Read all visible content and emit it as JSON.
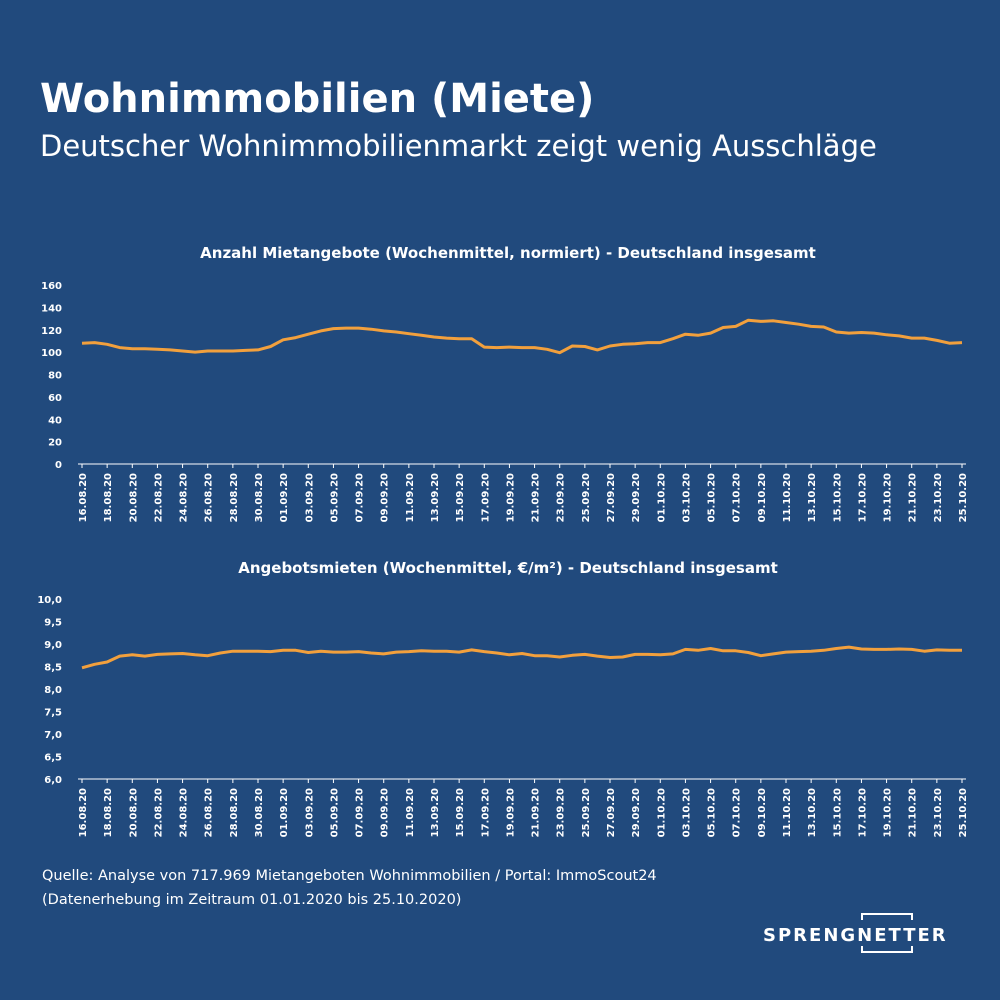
{
  "title": "Wohnimmobilien (Miete)",
  "subtitle": "Deutscher Wohnimmobilienmarkt zeigt wenig Ausschläge",
  "chart_data": [
    {
      "type": "line",
      "title": "Anzahl Mietangebote (Wochenmittel, normiert) - Deutschland insgesamt",
      "categories": [
        "16.08.20",
        null,
        "18.08.20",
        null,
        "20.08.20",
        null,
        "22.08.20",
        null,
        "24.08.20",
        null,
        "26.08.20",
        null,
        "28.08.20",
        null,
        "30.08.20",
        null,
        "01.09.20",
        null,
        "03.09.20",
        null,
        "05.09.20",
        null,
        "07.09.20",
        null,
        "09.09.20",
        null,
        "11.09.20",
        null,
        "13.09.20",
        null,
        "15.09.20",
        null,
        "17.09.20",
        null,
        "19.09.20",
        null,
        "21.09.20",
        null,
        "23.09.20",
        null,
        "25.09.20",
        null,
        "27.09.20",
        null,
        "29.09.20",
        null,
        "01.10.20",
        null,
        "03.10.20",
        null,
        "05.10.20",
        null,
        "07.10.20",
        null,
        "09.10.20",
        null,
        "11.10.20",
        null,
        "13.10.20",
        null,
        "15.10.20",
        null,
        "17.10.20",
        null,
        "19.10.20",
        null,
        "21.10.20",
        null,
        "23.10.20",
        null,
        "25.10.20"
      ],
      "series": [
        {
          "name": "Anzahl Mietangebote",
          "color": "#f2a03d",
          "values": [
            108,
            108.5,
            107,
            104,
            103,
            103,
            102.5,
            102,
            101,
            100,
            101,
            101,
            101,
            101.5,
            102,
            105,
            111,
            113,
            116,
            119,
            121,
            121.5,
            121.5,
            120.5,
            119,
            118,
            116.5,
            115,
            113.5,
            112.5,
            112,
            112,
            104.5,
            104,
            104.5,
            104,
            104,
            102.5,
            99.5,
            105.5,
            105,
            102,
            105.5,
            107,
            107.5,
            108.5,
            108.5,
            112,
            116,
            115,
            117,
            122,
            123,
            128.5,
            127.5,
            128,
            126.5,
            125,
            123,
            122.5,
            118,
            117,
            117.5,
            117,
            115.5,
            114.5,
            112.5,
            112.5,
            110.5,
            108,
            108.5
          ]
        }
      ],
      "ylim": [
        0,
        160
      ],
      "yticks": [
        0,
        20,
        40,
        60,
        80,
        100,
        120,
        140,
        160
      ]
    },
    {
      "type": "line",
      "title": "Angebotsmieten (Wochenmittel, €/m²) - Deutschland insgesamt",
      "categories": [
        "16.08.20",
        null,
        "18.08.20",
        null,
        "20.08.20",
        null,
        "22.08.20",
        null,
        "24.08.20",
        null,
        "26.08.20",
        null,
        "28.08.20",
        null,
        "30.08.20",
        null,
        "01.09.20",
        null,
        "03.09.20",
        null,
        "05.09.20",
        null,
        "07.09.20",
        null,
        "09.09.20",
        null,
        "11.09.20",
        null,
        "13.09.20",
        null,
        "15.09.20",
        null,
        "17.09.20",
        null,
        "19.09.20",
        null,
        "21.09.20",
        null,
        "23.09.20",
        null,
        "25.09.20",
        null,
        "27.09.20",
        null,
        "29.09.20",
        null,
        "01.10.20",
        null,
        "03.10.20",
        null,
        "05.10.20",
        null,
        "07.10.20",
        null,
        "09.10.20",
        null,
        "11.10.20",
        null,
        "13.10.20",
        null,
        "15.10.20",
        null,
        "17.10.20",
        null,
        "19.10.20",
        null,
        "21.10.20",
        null,
        "23.10.20",
        null,
        "25.10.20"
      ],
      "series": [
        {
          "name": "Angebotsmieten",
          "color": "#f2a03d",
          "values": [
            8.47,
            8.55,
            8.6,
            8.73,
            8.76,
            8.73,
            8.77,
            8.78,
            8.79,
            8.76,
            8.74,
            8.8,
            8.84,
            8.84,
            8.84,
            8.83,
            8.86,
            8.86,
            8.81,
            8.84,
            8.82,
            8.82,
            8.83,
            8.8,
            8.78,
            8.82,
            8.83,
            8.85,
            8.84,
            8.84,
            8.82,
            8.87,
            8.83,
            8.8,
            8.76,
            8.79,
            8.74,
            8.74,
            8.71,
            8.75,
            8.77,
            8.73,
            8.7,
            8.71,
            8.77,
            8.77,
            8.76,
            8.78,
            8.88,
            8.86,
            8.9,
            8.85,
            8.85,
            8.81,
            8.74,
            8.78,
            8.82,
            8.83,
            8.84,
            8.86,
            8.9,
            8.93,
            8.89,
            8.88,
            8.88,
            8.89,
            8.88,
            8.84,
            8.87,
            8.86,
            8.86
          ]
        }
      ],
      "ylim": [
        6,
        10
      ],
      "yticks": [
        {
          "value": 6,
          "label": "6,0"
        },
        {
          "value": 6.5,
          "label": "6,5"
        },
        {
          "value": 7,
          "label": "7,0"
        },
        {
          "value": 7.5,
          "label": "7,5"
        },
        {
          "value": 8,
          "label": "8,0"
        },
        {
          "value": 8.5,
          "label": "8,5"
        },
        {
          "value": 9,
          "label": "9,0"
        },
        {
          "value": 9.5,
          "label": "9,5"
        },
        {
          "value": 10,
          "label": "10,0"
        }
      ]
    }
  ],
  "source": [
    "Quelle: Analyse von 717.969 Mietangeboten Wohnimmobilien / Portal: ImmoScout24",
    "(Datenerhebung im Zeitraum 01.01.2020 bis  25.10.2020)"
  ],
  "logo": "SPRENGNETTER"
}
